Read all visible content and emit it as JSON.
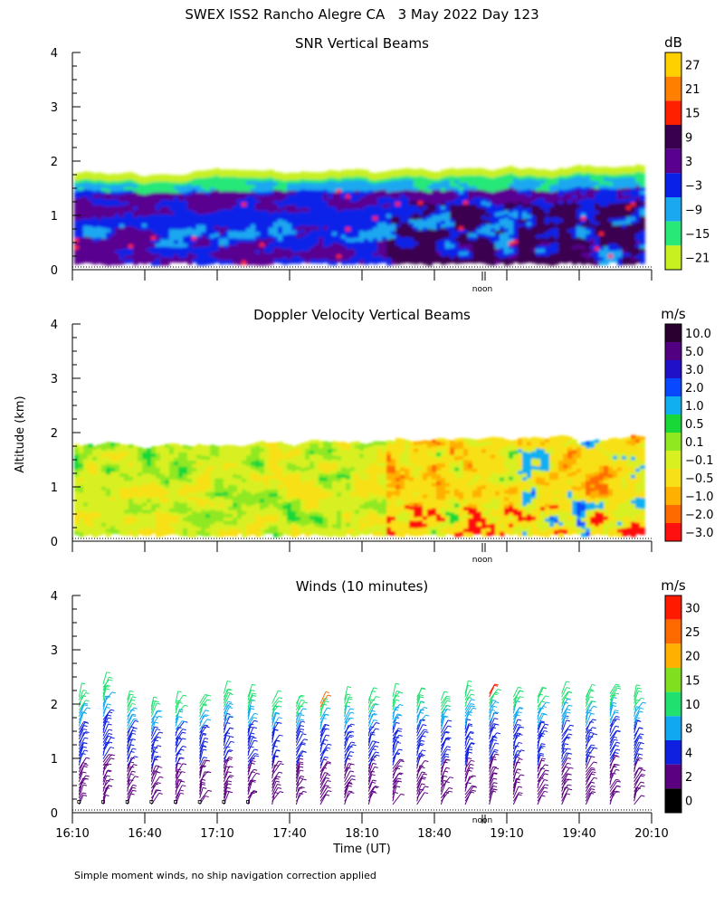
{
  "page": {
    "title": "SWEX ISS2 Rancho Alegre CA   3 May 2022 Day 123",
    "ylabel": "Altitude (km)",
    "xlabel": "Time (UT)",
    "footnote": "Simple moment winds, no ship navigation correction applied",
    "noon_label": "noon"
  },
  "chart_data": [
    {
      "type": "heatmap",
      "title": "SNR Vertical Beams",
      "colorbar": {
        "unit": "dB",
        "labels": [
          "27",
          "21",
          "15",
          "9",
          "3",
          "−3",
          "−9",
          "−15",
          "−21"
        ],
        "colors": [
          "#ffd000",
          "#ff7f00",
          "#ff2000",
          "#3a0050",
          "#5a0090",
          "#0820e8",
          "#1aa8f0",
          "#28e878",
          "#c8f020"
        ]
      },
      "yticks": [
        "0",
        "1",
        "2",
        "3",
        "4"
      ],
      "ylim": [
        0,
        4
      ],
      "xlim": [
        "16:10",
        "20:10"
      ],
      "top_km_start": 1.75,
      "top_km_end": 1.9
    },
    {
      "type": "heatmap",
      "title": "Doppler Velocity Vertical Beams",
      "colorbar": {
        "unit": "m/s",
        "labels": [
          "10.0",
          "5.0",
          "3.0",
          "2.0",
          "1.0",
          "0.5",
          "0.1",
          "−0.1",
          "−0.5",
          "−1.0",
          "−2.0",
          "−3.0"
        ],
        "colors": [
          "#2a0030",
          "#500080",
          "#2010c8",
          "#0848ff",
          "#10b0f0",
          "#18d838",
          "#90e820",
          "#d8f020",
          "#f8e018",
          "#ffb000",
          "#ff6a00",
          "#ff1010"
        ]
      },
      "yticks": [
        "0",
        "1",
        "2",
        "3",
        "4"
      ],
      "ylim": [
        0,
        4
      ],
      "xlim": [
        "16:10",
        "20:10"
      ]
    },
    {
      "type": "scatter",
      "title": "Winds (10 minutes)",
      "colorbar": {
        "unit": "m/s",
        "labels": [
          "30",
          "25",
          "20",
          "15",
          "10",
          "8",
          "4",
          "2",
          "0"
        ],
        "colors": [
          "#ff1a00",
          "#ff6a00",
          "#ffb000",
          "#80e020",
          "#20e070",
          "#10a8f0",
          "#1020e0",
          "#5a0080",
          "#000000"
        ]
      },
      "yticks": [
        "0",
        "1",
        "2",
        "3",
        "4"
      ],
      "ylim": [
        0,
        4
      ],
      "xticks": [
        "16:10",
        "16:40",
        "17:10",
        "17:40",
        "18:10",
        "18:40",
        "19:10",
        "19:40",
        "20:10"
      ],
      "xlim": [
        "16:10",
        "20:10"
      ],
      "profile_times": [
        "16:15",
        "16:25",
        "16:35",
        "16:45",
        "16:55",
        "17:05",
        "17:15",
        "17:25",
        "17:35",
        "17:45",
        "17:55",
        "18:05",
        "18:15",
        "18:25",
        "18:35",
        "18:45",
        "18:55",
        "19:05",
        "19:15",
        "19:25",
        "19:35",
        "19:45",
        "19:55",
        "20:05"
      ],
      "profile_tops_km": [
        2.15,
        2.4,
        2.1,
        2.0,
        2.05,
        2.05,
        2.25,
        2.15,
        2.05,
        2.05,
        2.05,
        2.1,
        2.1,
        2.15,
        2.15,
        2.1,
        2.2,
        2.25,
        2.15,
        2.15,
        2.2,
        2.15,
        2.25,
        2.15
      ]
    }
  ]
}
